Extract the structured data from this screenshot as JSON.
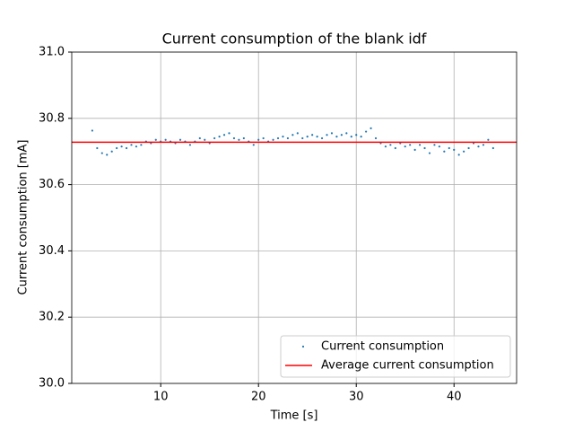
{
  "chart_data": {
    "type": "scatter",
    "title": "Current consumption of the blank idf",
    "x_label": "Time [s]",
    "y_label": "Current consumption [mA]",
    "xlim": [
      0.9,
      46.4
    ],
    "xticks": [
      10,
      20,
      30,
      40
    ],
    "ylim": [
      30.0,
      31.0
    ],
    "yticks": [
      {
        "value": 30.0,
        "label": "30.0"
      },
      30.2,
      30.4,
      30.6,
      30.8,
      {
        "value": 31.0,
        "label": "31.0"
      }
    ],
    "grid": true,
    "legend": "lower right",
    "series": [
      {
        "name": "Current consumption",
        "color": "#1f77b4",
        "type": "scatter",
        "x": [
          3,
          3.5,
          4,
          4.5,
          5,
          5.5,
          6,
          6.5,
          7,
          7.5,
          8,
          8.5,
          9,
          9.5,
          10,
          10.5,
          11,
          11.5,
          12,
          12.5,
          13,
          13.5,
          14,
          14.5,
          15,
          15.5,
          16,
          16.5,
          17,
          17.5,
          18,
          18.5,
          19,
          19.5,
          20,
          20.5,
          21,
          21.5,
          22,
          22.5,
          23,
          23.5,
          24,
          24.5,
          25,
          25.5,
          26,
          26.5,
          27,
          27.5,
          28,
          28.5,
          29,
          29.5,
          30,
          30.5,
          31,
          31.5,
          32,
          32.5,
          33,
          33.5,
          34,
          34.5,
          35,
          35.5,
          36,
          36.5,
          37,
          37.5,
          38,
          38.5,
          39,
          39.5,
          40,
          40.5,
          41,
          41.5,
          42,
          42.5,
          43,
          43.5,
          44
        ],
        "values": [
          30.763,
          30.71,
          30.695,
          30.69,
          30.7,
          30.71,
          30.715,
          30.71,
          30.72,
          30.715,
          30.72,
          30.73,
          30.725,
          30.735,
          30.73,
          30.735,
          30.73,
          30.725,
          30.735,
          30.73,
          30.72,
          30.73,
          30.74,
          30.735,
          30.725,
          30.74,
          30.745,
          30.75,
          30.755,
          30.74,
          30.735,
          30.74,
          30.73,
          30.72,
          30.735,
          30.74,
          30.73,
          30.735,
          30.74,
          30.745,
          30.74,
          30.75,
          30.755,
          30.74,
          30.745,
          30.75,
          30.745,
          30.74,
          30.75,
          30.755,
          30.745,
          30.75,
          30.755,
          30.745,
          30.75,
          30.745,
          30.76,
          30.77,
          30.74,
          30.725,
          30.715,
          30.72,
          30.71,
          30.725,
          30.715,
          30.72,
          30.705,
          30.72,
          30.71,
          30.695,
          30.72,
          30.715,
          30.7,
          30.71,
          30.705,
          30.69,
          30.7,
          30.71,
          30.725,
          30.715,
          30.72,
          30.735,
          30.71
        ]
      },
      {
        "name": "Average current consumption",
        "color": "#ff0000",
        "type": "hline",
        "values": [
          30.728
        ]
      }
    ]
  }
}
